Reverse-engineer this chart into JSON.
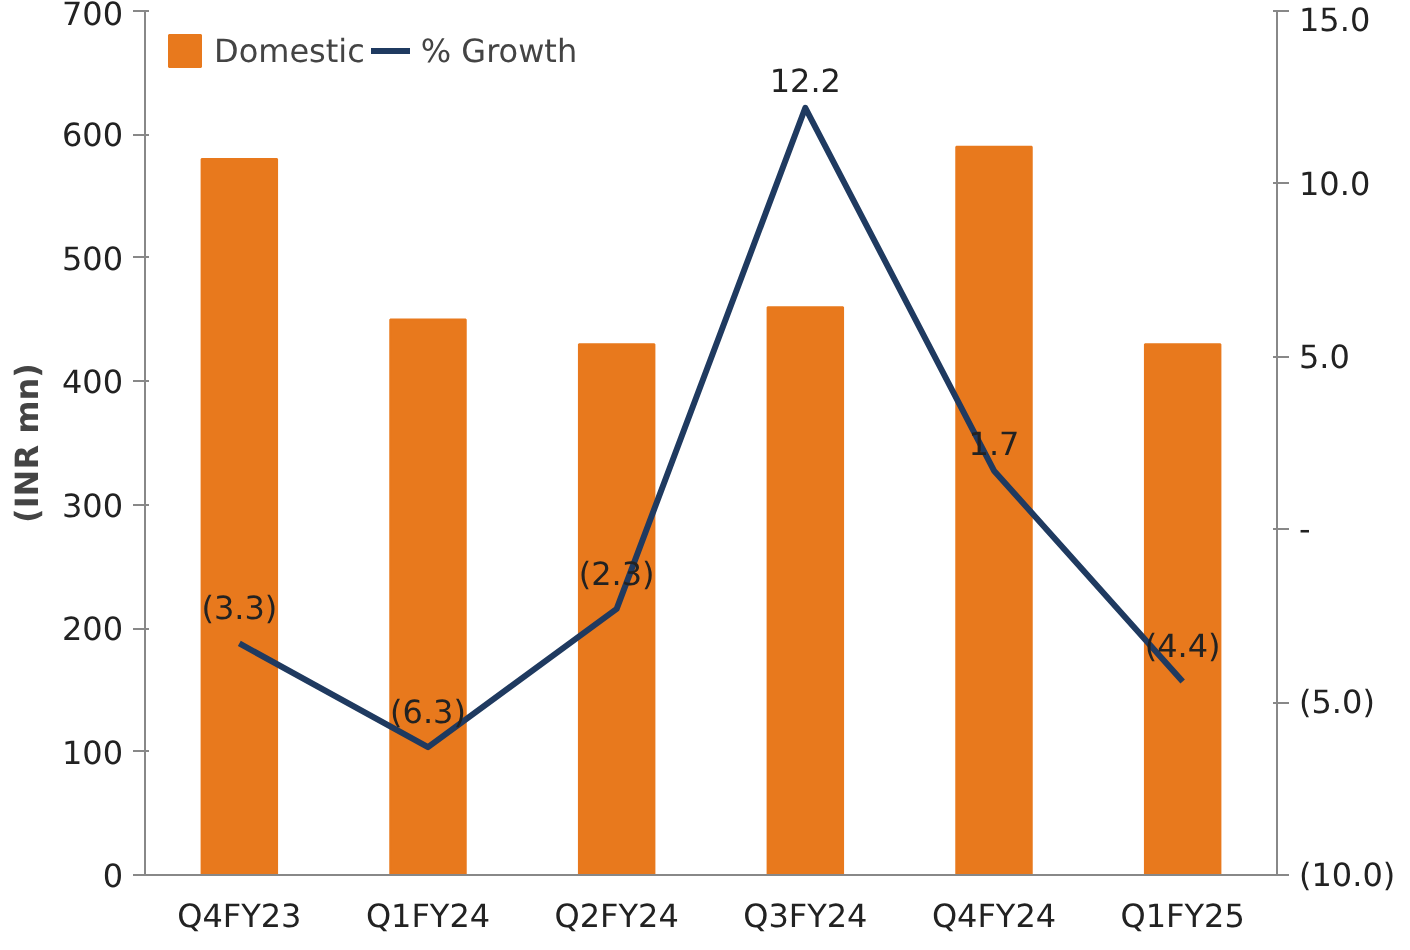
{
  "chart_data": {
    "type": "bar",
    "categories": [
      "Q4FY23",
      "Q1FY24",
      "Q2FY24",
      "Q3FY24",
      "Q4FY24",
      "Q1FY25"
    ],
    "ylabel": "(INR mn)",
    "series": [
      {
        "name": "Domestic",
        "color": "#e8791d",
        "values": [
          580,
          450,
          430,
          460,
          590,
          430
        ]
      },
      {
        "name": "% Growth",
        "type": "line",
        "axis": "y2",
        "color": "#1f3a60",
        "values": [
          -3.3,
          -6.3,
          -2.3,
          12.2,
          1.7,
          -4.4
        ],
        "value_labels": [
          "(3.3)",
          "(6.3)",
          "(2.3)",
          "12.2",
          "1.7",
          "(4.4)"
        ]
      }
    ],
    "ylim": [
      0,
      700
    ],
    "yticks": [
      0,
      100,
      200,
      300,
      400,
      500,
      600,
      700
    ],
    "y2lim": [
      -10,
      15
    ],
    "y2ticks": [
      {
        "value": -10,
        "label": "(10.0)"
      },
      {
        "value": -5,
        "label": "(5.0)"
      },
      {
        "value": 0,
        "label": "-"
      },
      {
        "value": 5,
        "label": "5.0"
      },
      {
        "value": 10,
        "label": "10.0"
      },
      {
        "value": 15,
        "label": "15.0"
      }
    ],
    "grid": false,
    "legend": "top",
    "marker": "none",
    "line_style": "solid"
  }
}
